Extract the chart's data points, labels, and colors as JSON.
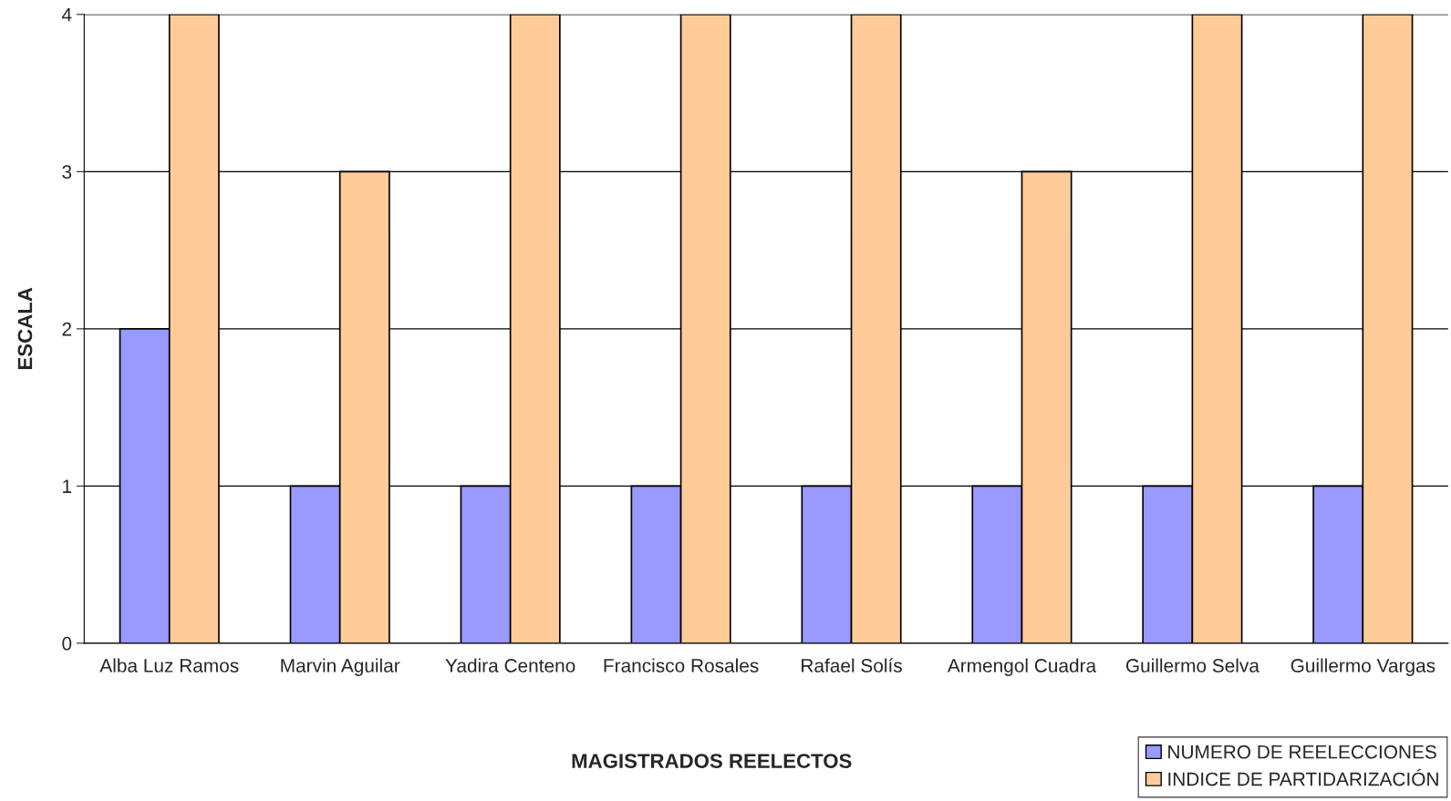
{
  "chart_data": {
    "type": "bar",
    "xlabel": "MAGISTRADOS REELECTOS",
    "ylabel": "ESCALA",
    "categories": [
      "Alba Luz Ramos",
      "Marvin Aguilar",
      "Yadira Centeno",
      "Francisco Rosales",
      "Rafael Solís",
      "Armengol Cuadra",
      "Guillermo Selva",
      "Guillermo Vargas"
    ],
    "series": [
      {
        "name": "NUMERO DE REELECCIONES",
        "color": "#9999ff",
        "values": [
          2,
          1,
          1,
          1,
          1,
          1,
          1,
          1
        ]
      },
      {
        "name": "INDICE DE PARTIDARIZACIÓN",
        "color": "#ffcc99",
        "values": [
          4,
          3,
          4,
          4,
          4,
          3,
          4,
          4
        ]
      }
    ],
    "ylim": [
      0,
      4
    ],
    "yticks": [
      0,
      1,
      2,
      3,
      4
    ],
    "grid": "y",
    "legend": "bottom right"
  }
}
